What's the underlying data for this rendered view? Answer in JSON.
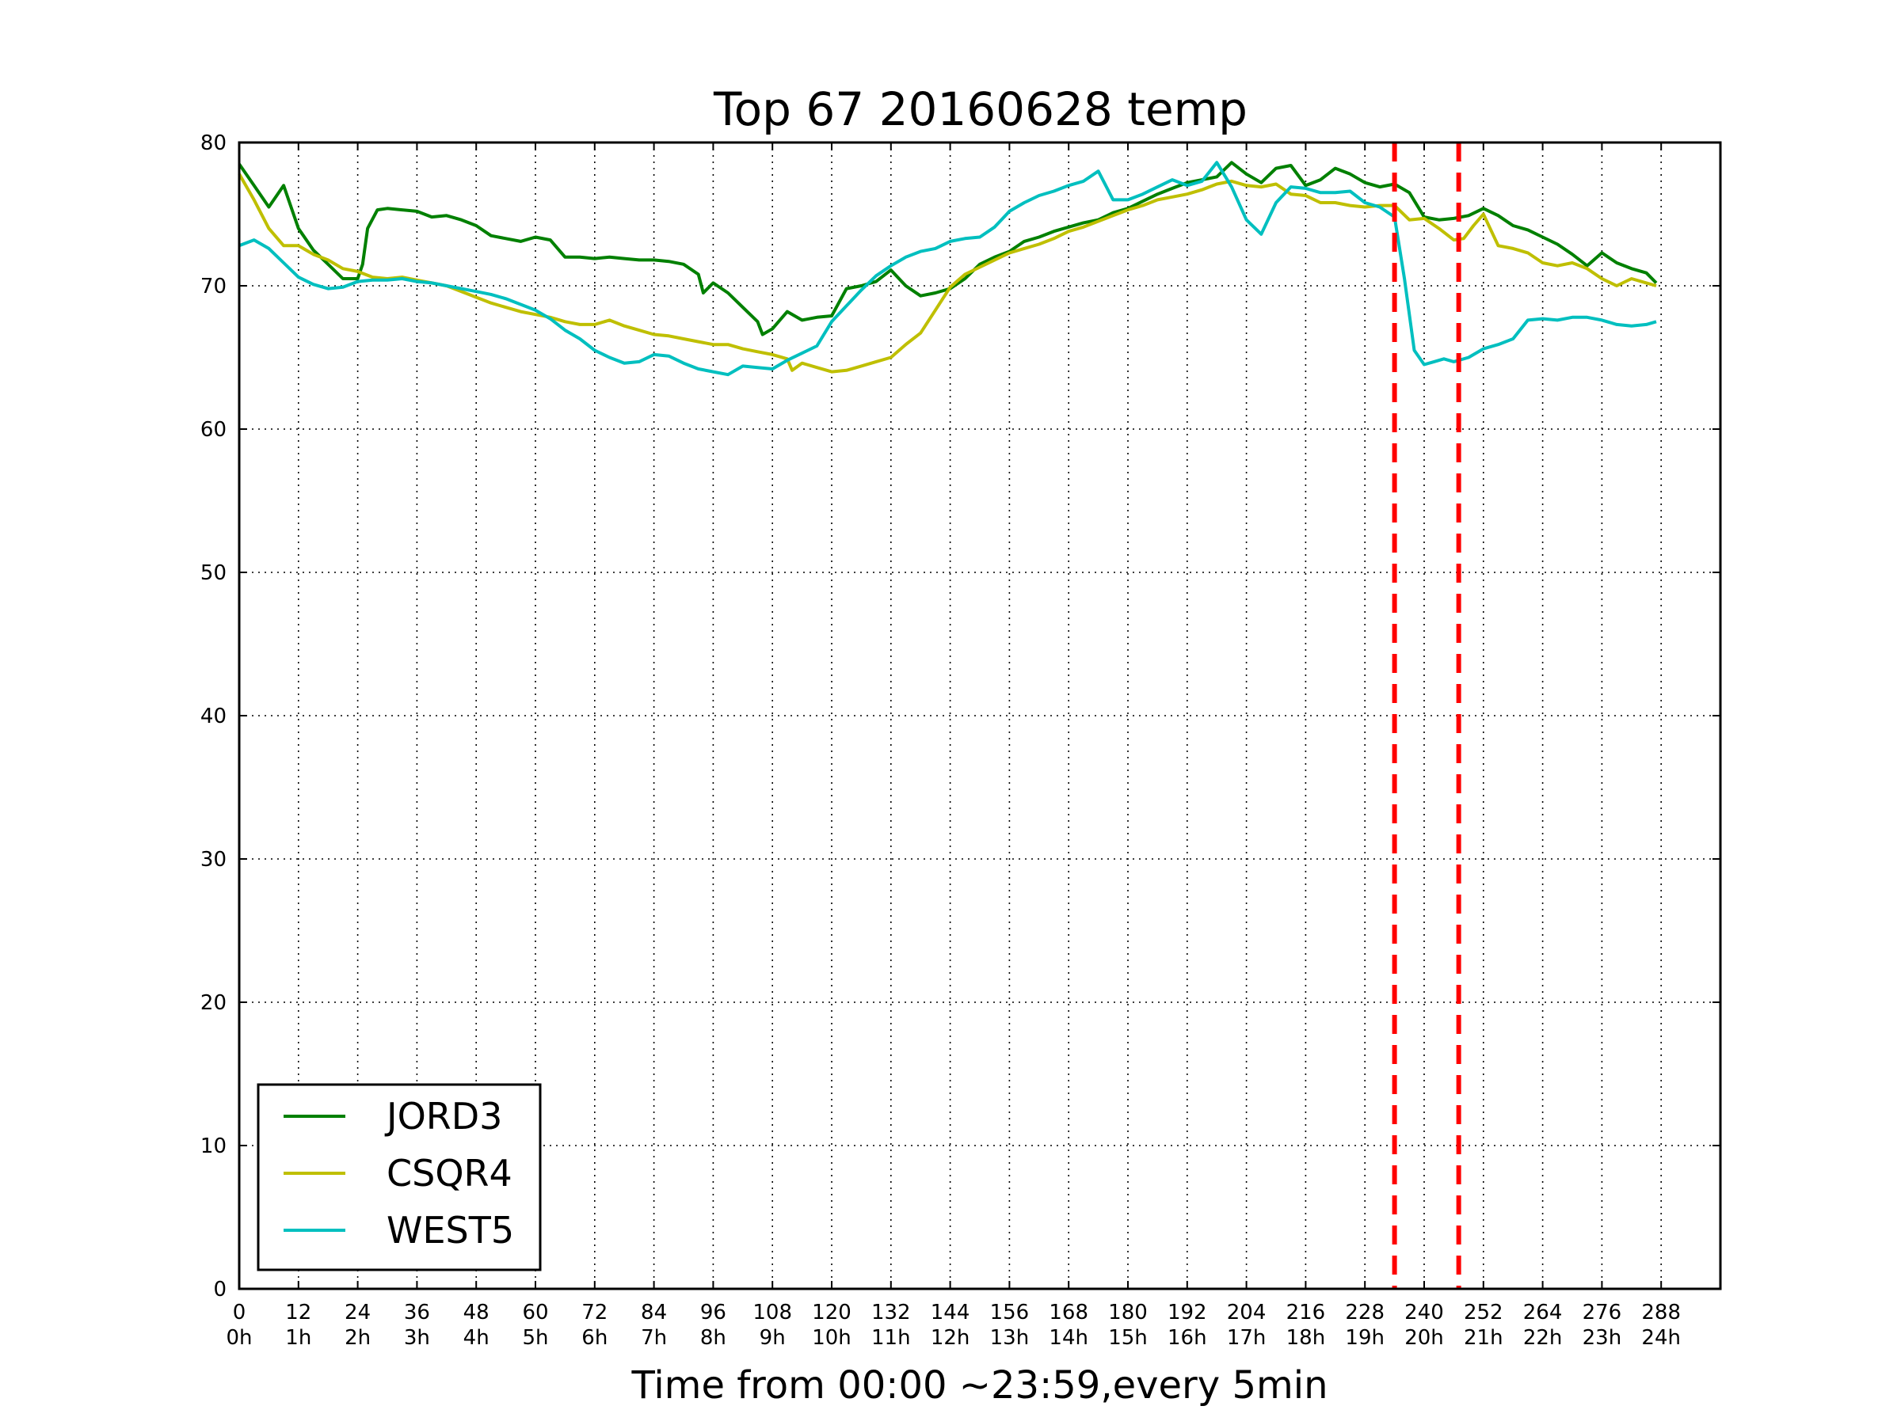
{
  "chart_data": {
    "type": "line",
    "title": "Top 67 20160628 temp",
    "xlabel": "Time from 00:00 ~23:59,every 5min",
    "ylabel": "",
    "xlim": [
      0,
      300
    ],
    "ylim": [
      0,
      80
    ],
    "grid": true,
    "legend_position": "lower-left",
    "x_ticks": [
      0,
      12,
      24,
      36,
      48,
      60,
      72,
      84,
      96,
      108,
      120,
      132,
      144,
      156,
      168,
      180,
      192,
      204,
      216,
      228,
      240,
      252,
      264,
      276,
      288
    ],
    "x_tick_labels_hours": [
      "0h",
      "1h",
      "2h",
      "3h",
      "4h",
      "5h",
      "6h",
      "7h",
      "8h",
      "9h",
      "10h",
      "11h",
      "12h",
      "13h",
      "14h",
      "15h",
      "16h",
      "17h",
      "18h",
      "19h",
      "20h",
      "21h",
      "22h",
      "23h",
      "24h"
    ],
    "y_ticks": [
      0,
      10,
      20,
      30,
      40,
      50,
      60,
      70,
      80
    ],
    "vlines": [
      {
        "x": 234,
        "color": "#ff0000",
        "style": "dashed"
      },
      {
        "x": 247,
        "color": "#ff0000",
        "style": "dashed"
      }
    ],
    "series": [
      {
        "name": "JORD3",
        "color": "#008000",
        "x": [
          0,
          3,
          6,
          9,
          12,
          15,
          18,
          21,
          24,
          25,
          26,
          28,
          30,
          33,
          36,
          39,
          42,
          45,
          48,
          51,
          54,
          57,
          60,
          63,
          66,
          69,
          72,
          75,
          78,
          81,
          84,
          87,
          90,
          93,
          94,
          96,
          99,
          102,
          105,
          106,
          108,
          111,
          114,
          117,
          120,
          123,
          126,
          129,
          132,
          135,
          138,
          141,
          144,
          147,
          150,
          153,
          156,
          159,
          162,
          165,
          168,
          171,
          174,
          177,
          180,
          183,
          186,
          189,
          192,
          195,
          198,
          201,
          204,
          207,
          210,
          213,
          216,
          219,
          222,
          225,
          228,
          231,
          234,
          237,
          240,
          243,
          246,
          249,
          252,
          255,
          258,
          261,
          264,
          267,
          270,
          273,
          276,
          279,
          282,
          285,
          287
        ],
        "values": [
          78.5,
          77,
          75.5,
          77,
          74,
          72.5,
          71.5,
          70.5,
          70.5,
          71.5,
          74,
          75.3,
          75.4,
          75.3,
          75.2,
          74.8,
          74.9,
          74.6,
          74.2,
          73.5,
          73.3,
          73.1,
          73.4,
          73.2,
          72.0,
          72.0,
          71.9,
          72.0,
          71.9,
          71.8,
          71.8,
          71.7,
          71.5,
          70.8,
          69.5,
          70.2,
          69.5,
          68.5,
          67.5,
          66.6,
          67.0,
          68.2,
          67.6,
          67.8,
          67.9,
          69.8,
          70.0,
          70.3,
          71.1,
          70.0,
          69.3,
          69.5,
          69.8,
          70.5,
          71.5,
          72.0,
          72.4,
          73.1,
          73.4,
          73.8,
          74.1,
          74.4,
          74.6,
          75.1,
          75.4,
          75.9,
          76.4,
          76.8,
          77.2,
          77.4,
          77.6,
          78.6,
          77.8,
          77.2,
          78.2,
          78.4,
          77.0,
          77.4,
          78.2,
          77.8,
          77.2,
          76.9,
          77.1,
          76.5,
          74.8,
          74.6,
          74.7,
          74.9,
          75.4,
          74.9,
          74.2,
          73.9,
          73.4,
          72.9,
          72.2,
          71.4,
          72.3,
          71.6,
          71.2,
          70.9,
          70.2
        ],
        "line_width": 4
      },
      {
        "name": "CSQR4",
        "color": "#bfbf00",
        "x": [
          0,
          3,
          6,
          9,
          12,
          15,
          18,
          21,
          24,
          27,
          30,
          33,
          36,
          39,
          42,
          45,
          48,
          51,
          54,
          57,
          60,
          63,
          66,
          69,
          72,
          75,
          78,
          81,
          84,
          87,
          90,
          93,
          96,
          99,
          102,
          105,
          108,
          111,
          112,
          114,
          117,
          120,
          123,
          126,
          129,
          132,
          135,
          138,
          141,
          144,
          147,
          150,
          153,
          156,
          159,
          162,
          165,
          168,
          171,
          174,
          177,
          180,
          183,
          186,
          189,
          192,
          195,
          198,
          201,
          204,
          207,
          210,
          213,
          216,
          219,
          222,
          225,
          228,
          231,
          234,
          237,
          240,
          243,
          246,
          248,
          250,
          252,
          255,
          258,
          261,
          264,
          267,
          270,
          273,
          276,
          279,
          282,
          285,
          287
        ],
        "values": [
          77.8,
          76.0,
          74.0,
          72.8,
          72.8,
          72.2,
          71.8,
          71.2,
          71.0,
          70.6,
          70.5,
          70.6,
          70.4,
          70.2,
          70.0,
          69.6,
          69.2,
          68.8,
          68.5,
          68.2,
          68.0,
          67.8,
          67.5,
          67.3,
          67.3,
          67.6,
          67.2,
          66.9,
          66.6,
          66.5,
          66.3,
          66.1,
          65.9,
          65.9,
          65.6,
          65.4,
          65.2,
          64.9,
          64.1,
          64.6,
          64.3,
          64.0,
          64.1,
          64.4,
          64.7,
          65.0,
          65.9,
          66.7,
          68.3,
          69.9,
          70.8,
          71.3,
          71.8,
          72.3,
          72.6,
          72.9,
          73.3,
          73.8,
          74.1,
          74.5,
          74.9,
          75.3,
          75.6,
          76.0,
          76.2,
          76.4,
          76.7,
          77.1,
          77.3,
          77.0,
          76.9,
          77.1,
          76.4,
          76.3,
          75.8,
          75.8,
          75.6,
          75.5,
          75.6,
          75.6,
          74.6,
          74.7,
          74.0,
          73.2,
          73.3,
          74.2,
          75.0,
          72.8,
          72.6,
          72.3,
          71.6,
          71.4,
          71.6,
          71.2,
          70.5,
          70.0,
          70.5,
          70.2,
          70.0
        ],
        "line_width": 4
      },
      {
        "name": "WEST5",
        "color": "#00bfbf",
        "x": [
          0,
          3,
          6,
          9,
          12,
          15,
          18,
          21,
          24,
          27,
          30,
          33,
          36,
          39,
          42,
          45,
          48,
          51,
          54,
          57,
          60,
          63,
          66,
          69,
          72,
          75,
          78,
          81,
          84,
          87,
          90,
          93,
          96,
          99,
          102,
          105,
          108,
          111,
          114,
          117,
          120,
          123,
          126,
          129,
          132,
          135,
          138,
          141,
          144,
          147,
          150,
          153,
          156,
          159,
          162,
          165,
          168,
          171,
          174,
          177,
          180,
          183,
          186,
          189,
          192,
          195,
          198,
          201,
          204,
          207,
          210,
          213,
          216,
          219,
          222,
          225,
          228,
          231,
          234,
          236,
          238,
          240,
          242,
          244,
          246,
          249,
          252,
          255,
          258,
          261,
          264,
          267,
          270,
          273,
          276,
          279,
          282,
          285,
          287
        ],
        "values": [
          72.8,
          73.2,
          72.6,
          71.6,
          70.6,
          70.1,
          69.8,
          69.9,
          70.3,
          70.4,
          70.4,
          70.5,
          70.3,
          70.2,
          70.0,
          69.8,
          69.6,
          69.4,
          69.1,
          68.7,
          68.3,
          67.7,
          66.9,
          66.3,
          65.5,
          65.0,
          64.6,
          64.7,
          65.2,
          65.1,
          64.6,
          64.2,
          64.0,
          63.8,
          64.4,
          64.3,
          64.2,
          64.8,
          65.3,
          65.8,
          67.5,
          68.6,
          69.7,
          70.7,
          71.4,
          72.0,
          72.4,
          72.6,
          73.1,
          73.3,
          73.4,
          74.1,
          75.2,
          75.8,
          76.3,
          76.6,
          77.0,
          77.3,
          78.0,
          76.0,
          76.0,
          76.4,
          76.9,
          77.4,
          77.0,
          77.3,
          78.6,
          76.9,
          74.6,
          73.6,
          75.8,
          76.9,
          76.8,
          76.5,
          76.5,
          76.6,
          75.8,
          75.5,
          74.8,
          70.5,
          65.5,
          64.5,
          64.7,
          64.9,
          64.7,
          65.0,
          65.6,
          65.9,
          66.3,
          67.6,
          67.7,
          67.6,
          67.8,
          67.8,
          67.6,
          67.3,
          67.2,
          67.3,
          67.5
        ],
        "line_width": 4
      }
    ]
  }
}
